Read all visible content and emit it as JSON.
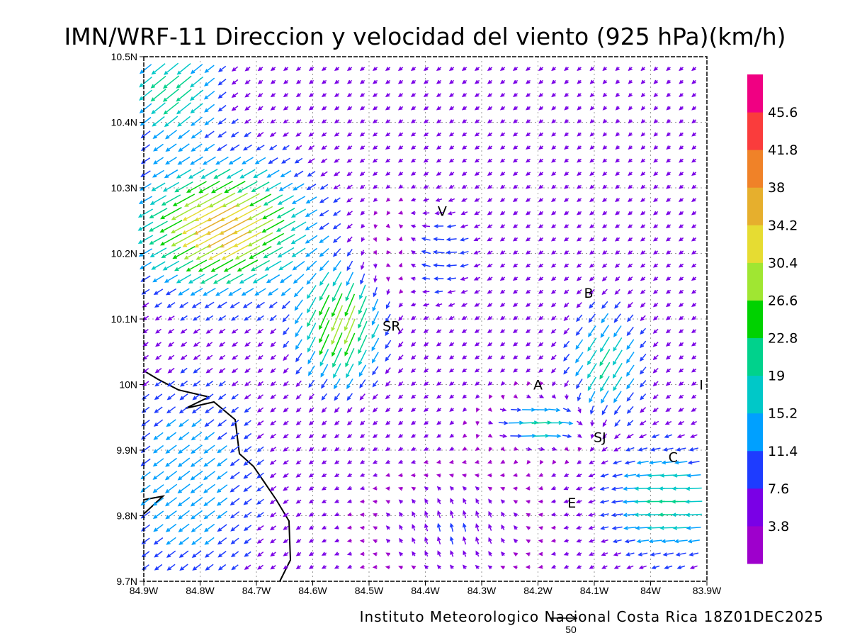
{
  "title": "IMN/WRF-11 Direccion y velocidad del viento (925 hPa)(km/h)",
  "footer": "Instituto Meteorologico Nacional Costa Rica 18Z01DEC2025",
  "reference_vector": {
    "label": "50",
    "value_kmh": 50
  },
  "axes": {
    "lon_range": [
      -84.9,
      -83.9
    ],
    "lat_range": [
      9.7,
      10.5
    ],
    "x_ticks": [
      "84.9W",
      "84.8W",
      "84.7W",
      "84.6W",
      "84.5W",
      "84.4W",
      "84.3W",
      "84.2W",
      "84.1W",
      "84W",
      "83.9W"
    ],
    "y_ticks": [
      "9.7N",
      "9.8N",
      "9.9N",
      "10N",
      "10.1N",
      "10.2N",
      "10.3N",
      "10.4N",
      "10.5N"
    ],
    "grid": "dotted"
  },
  "colorbar": {
    "labels": [
      "3.8",
      "7.6",
      "11.4",
      "15.2",
      "19",
      "22.8",
      "26.6",
      "30.4",
      "34.2",
      "38",
      "41.8",
      "45.6"
    ],
    "colors": [
      "#9e00cc",
      "#7a00e6",
      "#1e3cff",
      "#00a0ff",
      "#00c8c8",
      "#00d28c",
      "#00d200",
      "#a0e632",
      "#e6dc32",
      "#e6af2d",
      "#f08228",
      "#fa3c3c",
      "#f00082"
    ]
  },
  "towns": [
    {
      "code": "V",
      "lon": -84.37,
      "lat": 10.265
    },
    {
      "code": "B",
      "lon": -84.11,
      "lat": 10.14
    },
    {
      "code": "SR",
      "lon": -84.46,
      "lat": 10.09
    },
    {
      "code": "A",
      "lon": -84.2,
      "lat": 10.0
    },
    {
      "code": "I",
      "lon": -83.91,
      "lat": 10.0
    },
    {
      "code": "SJ",
      "lon": -84.09,
      "lat": 9.92
    },
    {
      "code": "C",
      "lon": -83.96,
      "lat": 9.89
    },
    {
      "code": "E",
      "lon": -84.14,
      "lat": 9.82
    }
  ]
}
